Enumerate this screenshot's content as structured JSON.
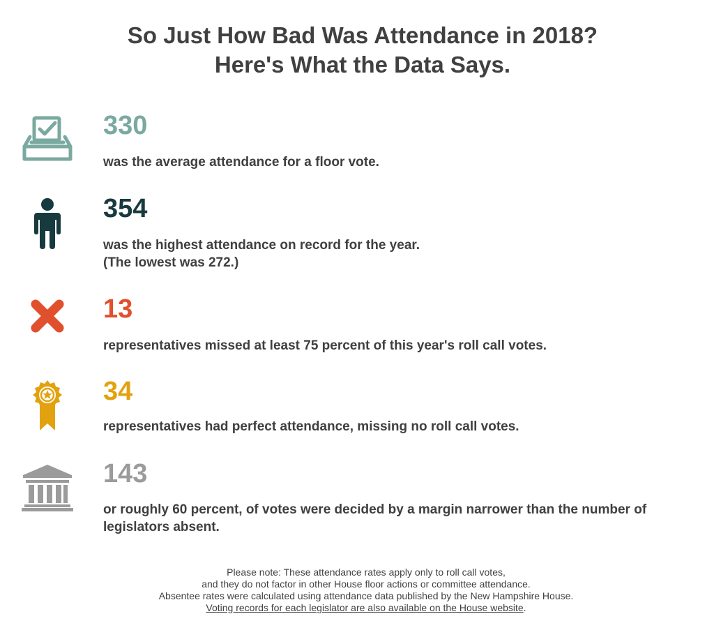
{
  "title": {
    "line1": "So Just How Bad Was Attendance in 2018?",
    "line2": "Here's What the Data Says."
  },
  "stats": [
    {
      "icon": "ballot-box-check-icon",
      "color": "#7aa9a0",
      "value": "330",
      "desc_line1": "was the average attendance for a floor vote.",
      "desc_line2": ""
    },
    {
      "icon": "person-icon",
      "color": "#173a3f",
      "value": "354",
      "desc_line1": "was the highest attendance on record for the year.",
      "desc_line2": "(The lowest was 272.)"
    },
    {
      "icon": "x-mark-icon",
      "color": "#e0502d",
      "value": "13",
      "desc_line1": "representatives missed at least 75 percent of this year's roll call votes.",
      "desc_line2": ""
    },
    {
      "icon": "award-ribbon-icon",
      "color": "#e2a20f",
      "value": "34",
      "desc_line1": "representatives had perfect attendance, missing no roll call votes.",
      "desc_line2": ""
    },
    {
      "icon": "government-building-icon",
      "color": "#9b9b9b",
      "value": "143",
      "desc_line1": "or roughly 60 percent, of votes were decided by a margin narrower than the number of",
      "desc_line2": "legislators absent."
    }
  ],
  "note": {
    "line1": "Please note: These attendance rates apply only to roll call votes,",
    "line2": "and they do not factor in other House floor actions or committee attendance.",
    "line3": "Absentee rates were calculated using attendance data published by the New Hampshire House.",
    "link_text": "Voting records for each legislator are also available on the House website",
    "link_suffix": "."
  }
}
